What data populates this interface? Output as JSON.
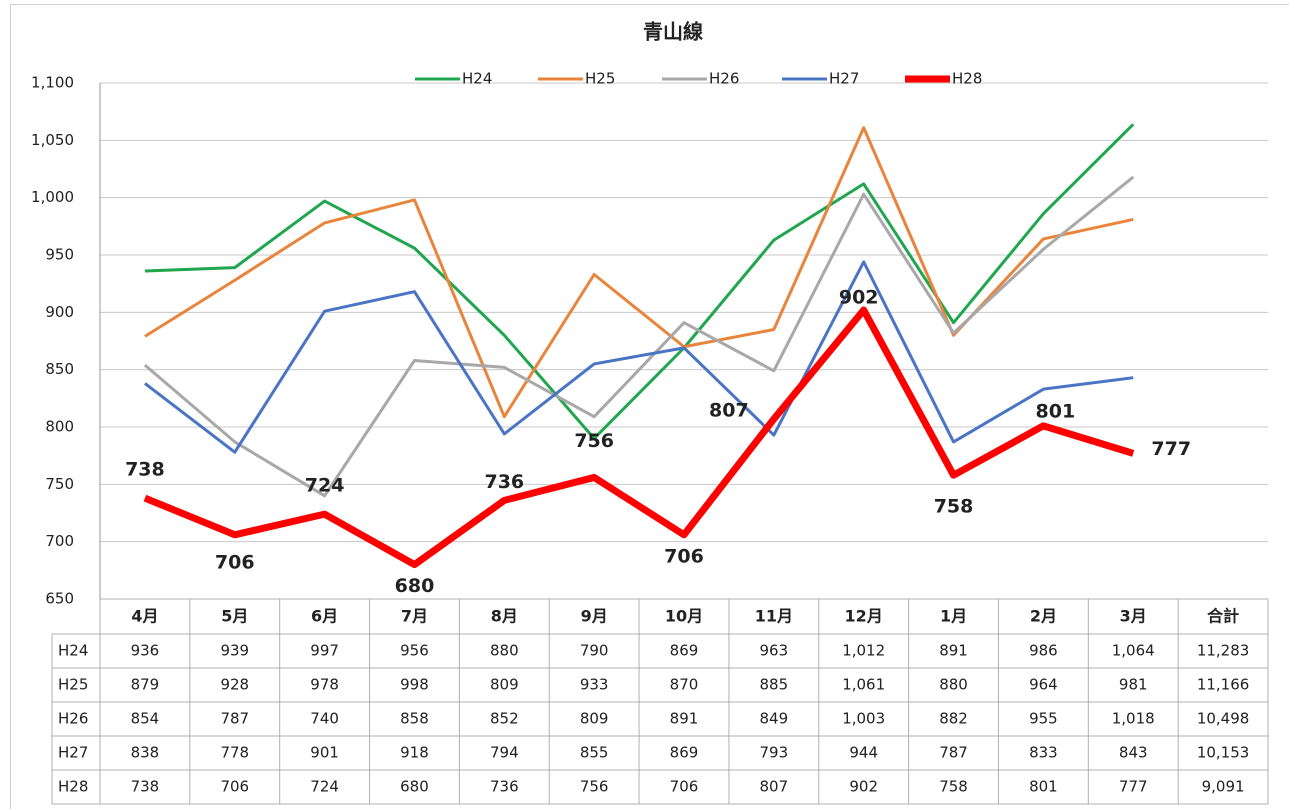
{
  "chart_data": {
    "type": "line",
    "title": "青山線",
    "categories": [
      "4月",
      "5月",
      "6月",
      "7月",
      "8月",
      "9月",
      "10月",
      "11月",
      "12月",
      "1月",
      "2月",
      "3月"
    ],
    "total_header": "合計",
    "ylim": [
      650,
      1100
    ],
    "yticks": [
      650,
      700,
      750,
      800,
      850,
      900,
      950,
      {
        "value": 1000,
        "label": "1,000"
      },
      {
        "value": 1050,
        "label": "1,050"
      },
      {
        "value": 1100,
        "label": "1,100"
      }
    ],
    "grid": true,
    "legend": "top",
    "series": [
      {
        "name": "H24",
        "color": "#1fa64e",
        "values": [
          936,
          939,
          997,
          956,
          880,
          790,
          869,
          963,
          1012,
          891,
          986,
          1064
        ],
        "value_labels": [
          "936",
          "939",
          "997",
          "956",
          "880",
          "790",
          "869",
          "963",
          "1,012",
          "891",
          "986",
          "1,064"
        ],
        "total": {
          "value": 11283,
          "label": "11,283"
        }
      },
      {
        "name": "H25",
        "color": "#e8843c",
        "values": [
          879,
          928,
          978,
          998,
          809,
          933,
          870,
          885,
          1061,
          880,
          964,
          981
        ],
        "value_labels": [
          "879",
          "928",
          "978",
          "998",
          "809",
          "933",
          "870",
          "885",
          "1,061",
          "880",
          "964",
          "981"
        ],
        "total": {
          "value": 11166,
          "label": "11,166"
        }
      },
      {
        "name": "H26",
        "color": "#a8a8a8",
        "values": [
          854,
          787,
          740,
          858,
          852,
          809,
          891,
          849,
          1003,
          882,
          955,
          1018
        ],
        "value_labels": [
          "854",
          "787",
          "740",
          "858",
          "852",
          "809",
          "891",
          "849",
          "1,003",
          "882",
          "955",
          "1,018"
        ],
        "total": {
          "value": 10498,
          "label": "10,498"
        }
      },
      {
        "name": "H27",
        "color": "#4a74c4",
        "values": [
          838,
          778,
          901,
          918,
          794,
          855,
          869,
          793,
          944,
          787,
          833,
          843
        ],
        "value_labels": [
          "838",
          "778",
          "901",
          "918",
          "794",
          "855",
          "869",
          "793",
          "944",
          "787",
          "833",
          "843"
        ],
        "total": {
          "value": 10153,
          "label": "10,153"
        }
      },
      {
        "name": "H28",
        "color": "#ff0000",
        "data_labels": true,
        "values": [
          738,
          706,
          724,
          680,
          736,
          756,
          706,
          807,
          902,
          758,
          801,
          777
        ],
        "value_labels": [
          "738",
          "706",
          "724",
          "680",
          "736",
          "756",
          "706",
          "807",
          "902",
          "758",
          "801",
          "777"
        ],
        "total": {
          "value": 9091,
          "label": "9,091"
        }
      }
    ]
  }
}
